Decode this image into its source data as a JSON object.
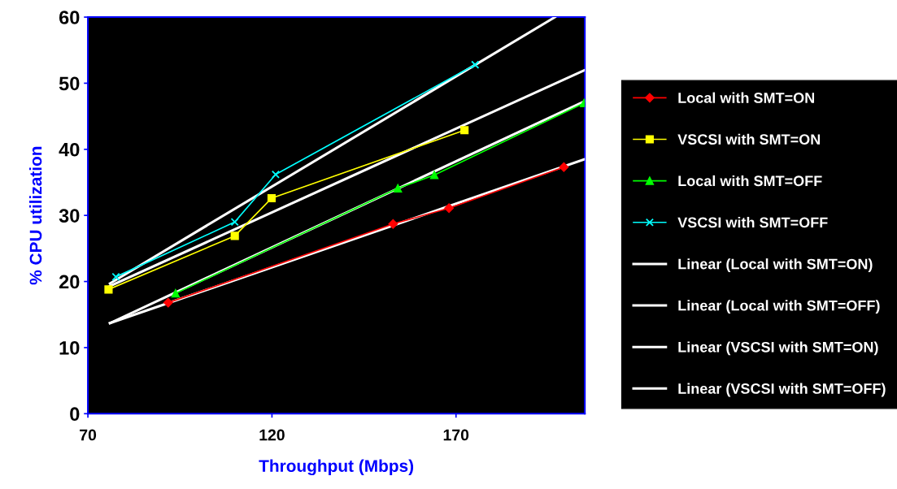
{
  "chart_data": {
    "type": "line",
    "xlabel": "Throughput (Mbps)",
    "ylabel": "% CPU utilization",
    "xlim": [
      70,
      205
    ],
    "xticks": [
      70,
      120,
      170
    ],
    "ylim": [
      0,
      60
    ],
    "yticks": [
      0,
      10,
      20,
      30,
      40,
      50,
      60
    ],
    "grid": false,
    "legend": "right",
    "series": [
      {
        "name": "Local with SMT=ON",
        "color": "#ff0000",
        "marker": "diamond",
        "x": [
          91.8,
          152.9,
          168.1,
          199.3
        ],
        "values": [
          16.8,
          28.7,
          31.1,
          37.3
        ]
      },
      {
        "name": "VSCSI with SMT=ON",
        "color": "#ffff00",
        "marker": "square",
        "x": [
          75.6,
          109.9,
          119.9,
          172.3
        ],
        "values": [
          18.8,
          26.9,
          32.6,
          42.9
        ]
      },
      {
        "name": "Local with SMT=OFF",
        "color": "#00ff00",
        "marker": "triangle",
        "x": [
          93.8,
          154.2,
          164.1,
          204.8
        ],
        "values": [
          18.2,
          34.1,
          36.1,
          47.0
        ]
      },
      {
        "name": "VSCSI with SMT=OFF",
        "color": "#00ffff",
        "marker": "cross",
        "x": [
          77.6,
          109.9,
          121.0,
          175.2
        ],
        "values": [
          20.7,
          29.0,
          36.2,
          52.8
        ]
      },
      {
        "name": "Linear (Local with SMT=ON)",
        "color": "#ffffff",
        "marker": "none",
        "x": [
          76,
          205
        ],
        "values": [
          13.7,
          38.5
        ]
      },
      {
        "name": "Linear (Local with SMT=OFF)",
        "color": "#ffffff",
        "marker": "none",
        "x": [
          76,
          205
        ],
        "values": [
          13.7,
          47.3
        ]
      },
      {
        "name": "Linear (VSCSI with SMT=ON)",
        "color": "#ffffff",
        "marker": "none",
        "x": [
          76,
          205
        ],
        "values": [
          19.3,
          52.0
        ]
      },
      {
        "name": "Linear (VSCSI with SMT=OFF)",
        "color": "#ffffff",
        "marker": "none",
        "x": [
          76,
          196.9
        ],
        "values": [
          19.7,
          60.0
        ]
      }
    ]
  }
}
